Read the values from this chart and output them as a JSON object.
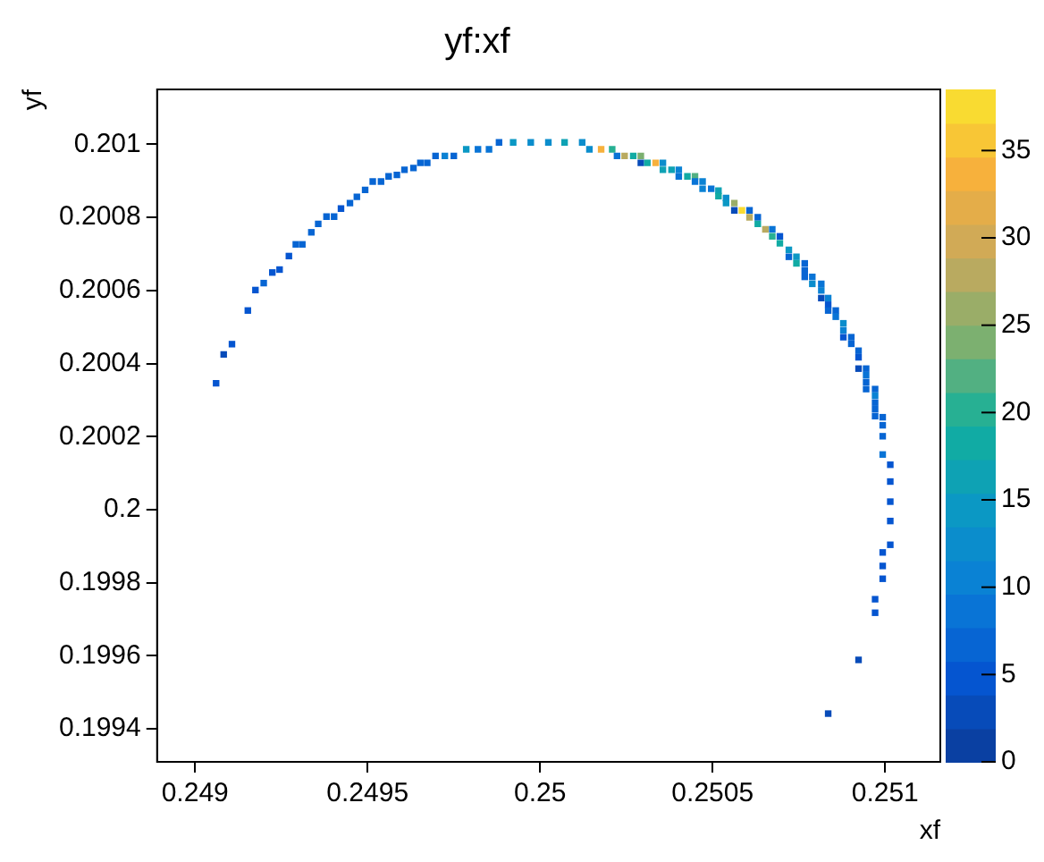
{
  "chart_data": {
    "type": "scatter",
    "title": "yf:xf",
    "xlabel": "xf",
    "ylabel": "yf",
    "marker": "square",
    "grid": false,
    "legend": false,
    "xlim": [
      0.24889,
      0.25116
    ],
    "xticks": [
      0.249,
      0.2495,
      0.25,
      0.2505,
      0.251
    ],
    "ylim": [
      0.19931,
      0.20115
    ],
    "yticks": [
      0.1994,
      0.1996,
      0.1998,
      0.2,
      0.2002,
      0.2004,
      0.2006,
      0.2008,
      0.201
    ],
    "clim": [
      0,
      38.5
    ],
    "cticks": [
      0,
      5,
      10,
      15,
      20,
      25,
      30,
      35
    ],
    "x": [
      0.249061,
      0.249083,
      0.249107,
      0.249153,
      0.249175,
      0.249199,
      0.249224,
      0.249245,
      0.249272,
      0.249292,
      0.249311,
      0.249337,
      0.249357,
      0.249381,
      0.249403,
      0.249423,
      0.249449,
      0.249469,
      0.249493,
      0.249515,
      0.249539,
      0.249561,
      0.249585,
      0.249607,
      0.249633,
      0.249653,
      0.249673,
      0.249697,
      0.249724,
      0.24975,
      0.249786,
      0.24982,
      0.249852,
      0.249881,
      0.249922,
      0.249973,
      0.250024,
      0.250071,
      0.250122,
      0.250143,
      0.250177,
      0.250209,
      0.250223,
      0.250245,
      0.25027,
      0.250292,
      0.250292,
      0.250311,
      0.250335,
      0.250356,
      0.250356,
      0.250381,
      0.250402,
      0.250402,
      0.250427,
      0.250449,
      0.250449,
      0.250471,
      0.250471,
      0.250496,
      0.250517,
      0.250517,
      0.250539,
      0.250539,
      0.250563,
      0.250563,
      0.250585,
      0.250607,
      0.250607,
      0.250631,
      0.250631,
      0.250653,
      0.250673,
      0.250673,
      0.250695,
      0.250695,
      0.250721,
      0.250721,
      0.250743,
      0.250743,
      0.250767,
      0.250767,
      0.250767,
      0.250789,
      0.250789,
      0.250815,
      0.250815,
      0.250815,
      0.250835,
      0.250835,
      0.250835,
      0.250857,
      0.250857,
      0.250879,
      0.250879,
      0.250879,
      0.250902,
      0.250902,
      0.250923,
      0.250923,
      0.250923,
      0.250945,
      0.250945,
      0.250945,
      0.250945,
      0.250971,
      0.250971,
      0.250971,
      0.250971,
      0.250971,
      0.250993,
      0.250993,
      0.250993,
      0.250993,
      0.251015,
      0.251015,
      0.251015,
      0.251015,
      0.251015,
      0.250993,
      0.250993,
      0.250993,
      0.250971,
      0.250971,
      0.250923,
      0.250835
    ],
    "values": [
      0.200346,
      0.200425,
      0.200453,
      0.200545,
      0.200601,
      0.20062,
      0.200649,
      0.200657,
      0.200694,
      0.200726,
      0.200726,
      0.200759,
      0.200782,
      0.200802,
      0.200802,
      0.200824,
      0.200839,
      0.200856,
      0.200875,
      0.200898,
      0.200898,
      0.200912,
      0.200916,
      0.20093,
      0.200935,
      0.200949,
      0.200949,
      0.200968,
      0.200968,
      0.200968,
      0.200986,
      0.200986,
      0.200986,
      0.201005,
      0.201005,
      0.201005,
      0.201005,
      0.201005,
      0.201005,
      0.200986,
      0.200986,
      0.200986,
      0.200968,
      0.200968,
      0.200968,
      0.200968,
      0.200949,
      0.200949,
      0.200949,
      0.200949,
      0.20093,
      0.20093,
      0.20093,
      0.200912,
      0.200912,
      0.200912,
      0.200898,
      0.200898,
      0.200878,
      0.200878,
      0.200873,
      0.200858,
      0.200853,
      0.200839,
      0.200839,
      0.200819,
      0.200819,
      0.200819,
      0.2008,
      0.2008,
      0.200782,
      0.200767,
      0.200767,
      0.200748,
      0.200748,
      0.200729,
      0.200711,
      0.200692,
      0.200692,
      0.200674,
      0.200674,
      0.200655,
      0.200637,
      0.200637,
      0.200618,
      0.200618,
      0.2006,
      0.200579,
      0.200579,
      0.200561,
      0.200545,
      0.200545,
      0.200528,
      0.20051,
      0.200491,
      0.200472,
      0.200472,
      0.200454,
      0.200435,
      0.200417,
      0.200386,
      0.200386,
      0.200368,
      0.200349,
      0.20033,
      0.20033,
      0.200312,
      0.200293,
      0.200275,
      0.200256,
      0.200253,
      0.200231,
      0.200201,
      0.200151,
      0.200123,
      0.200077,
      0.200022,
      0.199969,
      0.199904,
      0.199883,
      0.199846,
      0.199811,
      0.199755,
      0.199718,
      0.199589,
      0.199442
    ],
    "cvalues": [
      4,
      3,
      5,
      5,
      5,
      6,
      4,
      4,
      4,
      6,
      6,
      6,
      6,
      6,
      6,
      5,
      6,
      6,
      6,
      6,
      7,
      7,
      6,
      6,
      7,
      7,
      7,
      7,
      11,
      7,
      14,
      8,
      8,
      7,
      14,
      12,
      13,
      16,
      12,
      12,
      33,
      20,
      9,
      27,
      18,
      25,
      3,
      19,
      33,
      12,
      17,
      17,
      10,
      8,
      18,
      22,
      8,
      11,
      10,
      9,
      17,
      18,
      12,
      14,
      26,
      3,
      37,
      7,
      27,
      7,
      18,
      27,
      8,
      20,
      5,
      18,
      14,
      7,
      15,
      18,
      7,
      6,
      7,
      9,
      13,
      8,
      10,
      3,
      10,
      4,
      6,
      6,
      8,
      12,
      11,
      4,
      7,
      6,
      6,
      5,
      3,
      6,
      8,
      6,
      7,
      6,
      10,
      6,
      6,
      6,
      6,
      6,
      6,
      8,
      5,
      5,
      4,
      4,
      4,
      4,
      4,
      4,
      5,
      5,
      3,
      3
    ]
  }
}
